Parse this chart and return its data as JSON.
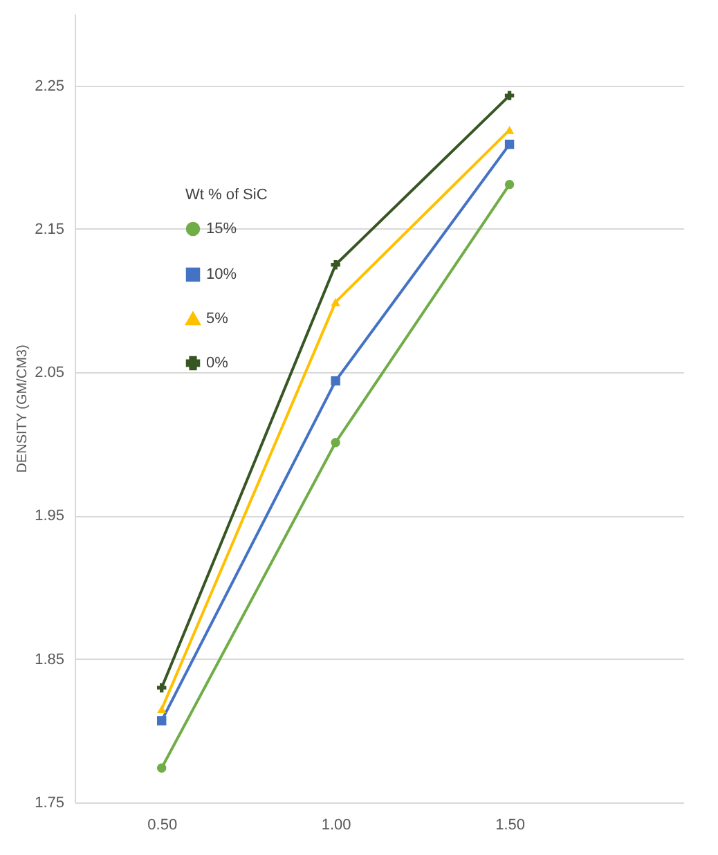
{
  "chart_data": {
    "type": "line",
    "xlabel": null,
    "ylabel": "DENSITY (GM/CM3)",
    "legend_title": "Wt % of SiC",
    "categories": [
      "0.50",
      "1.00",
      "1.50"
    ],
    "series": [
      {
        "name": "15%",
        "color": "#70ad47",
        "marker": "circle",
        "values": [
          1.774,
          2.001,
          2.181
        ]
      },
      {
        "name": "10%",
        "color": "#4472c4",
        "marker": "square",
        "values": [
          1.807,
          2.044,
          2.209
        ]
      },
      {
        "name": "5%",
        "color": "#ffc000",
        "marker": "triangle",
        "values": [
          1.815,
          2.099,
          2.219
        ]
      },
      {
        "name": "0%",
        "color": "#375623",
        "marker": "cross",
        "values": [
          1.83,
          2.125,
          2.243
        ]
      }
    ],
    "ylim": [
      1.75,
      2.3
    ],
    "yticks": [
      1.75,
      1.85,
      1.95,
      2.05,
      2.15,
      2.25
    ],
    "grid": "y",
    "legend": "top left",
    "line_style": "solid"
  }
}
